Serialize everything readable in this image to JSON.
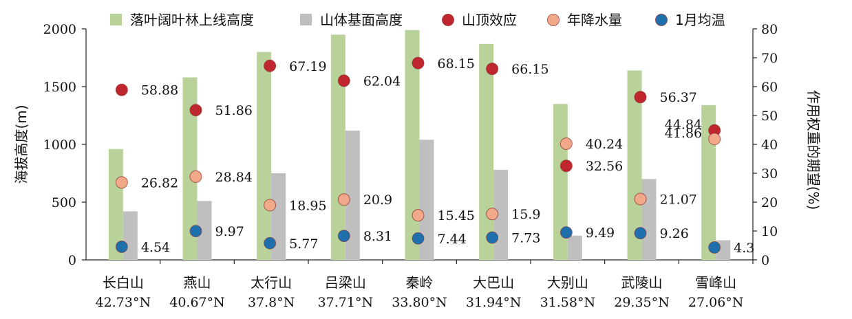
{
  "chart_data": {
    "type": "bar",
    "categories": [
      "长白山",
      "燕山",
      "太行山",
      "吕梁山",
      "秦岭",
      "大巴山",
      "大别山",
      "武陵山",
      "雪峰山"
    ],
    "latitudes": [
      "42.73°N",
      "40.67°N",
      "37.8°N",
      "37.71°N",
      "33.80°N",
      "31.94°N",
      "31.58°N",
      "29.35°N",
      "27.06°N"
    ],
    "ylabel": "海拔高度(m)",
    "y2label": "作用权重的期望(%)",
    "ylim": [
      0,
      2000
    ],
    "y2lim": [
      0,
      80
    ],
    "yticks": [
      "0",
      "500",
      "1000",
      "1500",
      "2000"
    ],
    "y2ticks": [
      "0",
      "10",
      "20",
      "30",
      "40",
      "50",
      "60",
      "70",
      "80"
    ],
    "bar_series": [
      {
        "name": "落叶阔叶林上线高度",
        "color": "#b8d29a",
        "values": [
          960,
          1580,
          1800,
          1950,
          1990,
          1870,
          1350,
          1640,
          1340
        ]
      },
      {
        "name": "山体基面高度",
        "color": "#bfbfbf",
        "values": [
          420,
          510,
          750,
          1120,
          1040,
          780,
          210,
          700,
          170
        ]
      }
    ],
    "point_series": [
      {
        "name": "山顶效应",
        "color": "#c0262d",
        "values": [
          58.88,
          51.86,
          67.19,
          62.04,
          68.15,
          66.15,
          32.56,
          56.37,
          44.84
        ],
        "labels": [
          "58.88",
          "51.86",
          "67.19",
          "62.04",
          "68.15",
          "66.15",
          "32.56",
          "56.37",
          "44.84"
        ]
      },
      {
        "name": "年降水量",
        "color": "#f2a98a",
        "values": [
          26.82,
          28.84,
          18.95,
          20.9,
          15.45,
          15.9,
          40.24,
          21.07,
          41.86
        ],
        "labels": [
          "26.82",
          "28.84",
          "18.95",
          "20.9",
          "15.45",
          "15.9",
          "40.24",
          "21.07",
          "41.86"
        ]
      },
      {
        "name": "1月均温",
        "color": "#1f6fad",
        "values": [
          4.54,
          9.97,
          5.77,
          8.31,
          7.44,
          7.73,
          9.49,
          9.26,
          4.3
        ],
        "labels": [
          "4.54",
          "9.97",
          "5.77",
          "8.31",
          "7.44",
          "7.73",
          "9.49",
          "9.26",
          "4.3"
        ]
      }
    ],
    "legend": "top",
    "grid": false
  }
}
